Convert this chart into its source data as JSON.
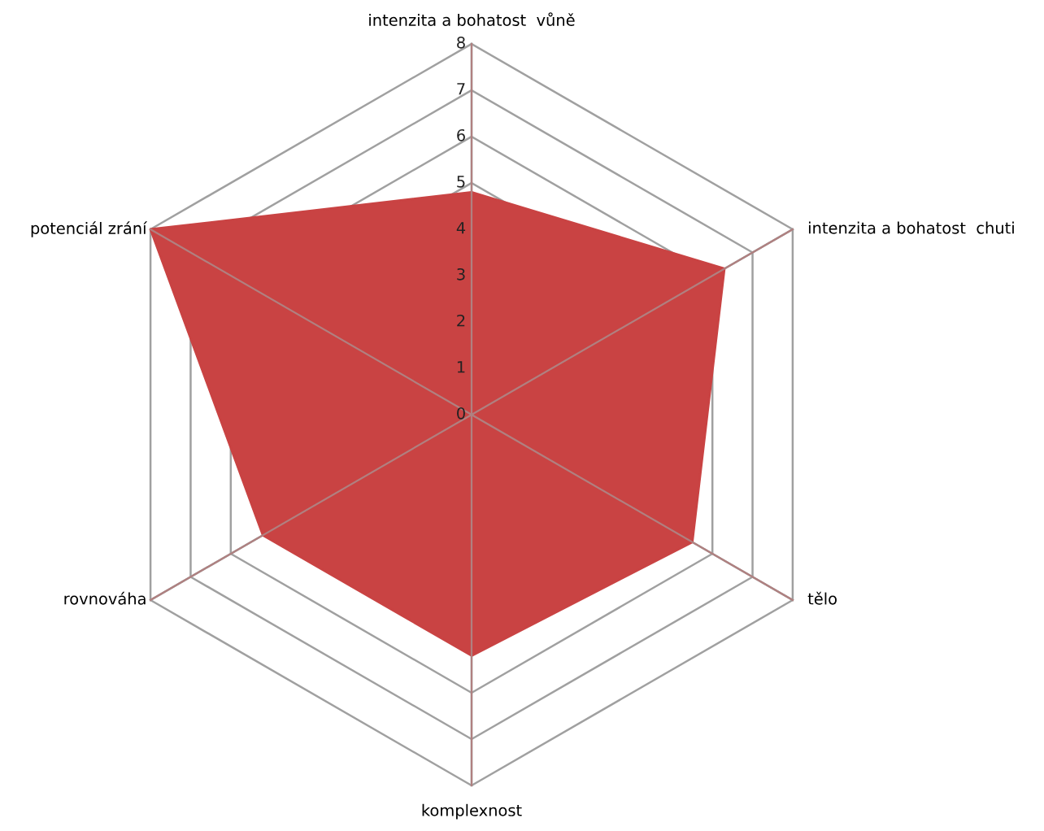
{
  "chart_data": {
    "type": "radar",
    "categories": [
      "intenzita a bohatost  vůně",
      "intenzita a bohatost  chuti",
      "tělo",
      "komplexnost",
      "rovnováha",
      "potenciál zrání"
    ],
    "series": [
      {
        "color": "#c94343",
        "values": [
          4.8,
          6.3,
          5.5,
          5.2,
          5.2,
          8
        ]
      }
    ],
    "ylim": [
      0,
      8
    ],
    "yticks": [
      0,
      1,
      2,
      3,
      4,
      5,
      6,
      7,
      8
    ],
    "grid": true
  }
}
